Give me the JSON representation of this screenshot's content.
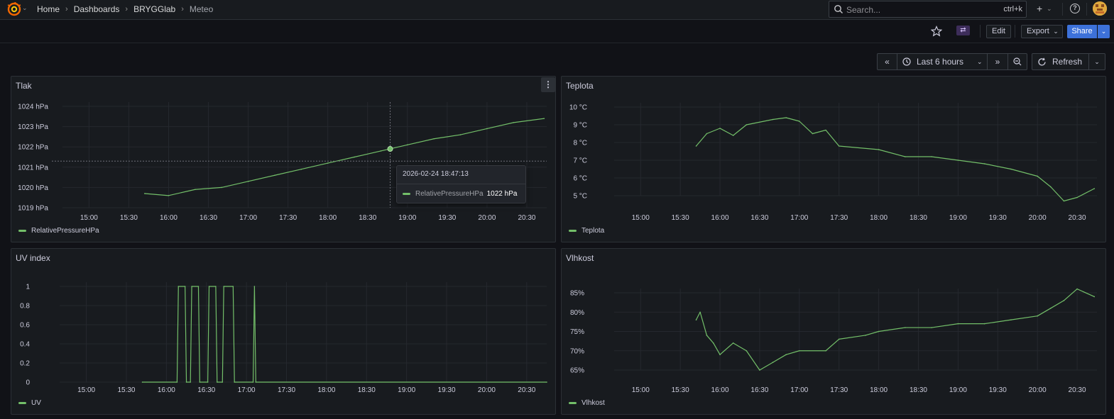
{
  "nav": {
    "breadcrumbs": [
      "Home",
      "Dashboards",
      "BRYGGlab",
      "Meteo"
    ],
    "search_placeholder": "Search...",
    "search_shortcut": "ctrl+k"
  },
  "toolbar": {
    "edit_label": "Edit",
    "export_label": "Export",
    "share_label": "Share"
  },
  "time_picker": {
    "range_label": "Last 6 hours",
    "refresh_label": "Refresh"
  },
  "colors": {
    "series": "#73bf69",
    "share_button": "#3d71d9",
    "background": "#111217",
    "panel": "#181b1f"
  },
  "panels": {
    "tlak": {
      "title": "Tlak",
      "legend": "RelativePressureHPa",
      "tooltip": {
        "time": "2026-02-24 18:47:13",
        "series": "RelativePressureHPa",
        "value": "1022 hPa"
      }
    },
    "teplota": {
      "title": "Teplota",
      "legend": "Teplota"
    },
    "uv": {
      "title": "UV index",
      "legend": "UV"
    },
    "vlhkost": {
      "title": "Vlhkost",
      "legend": "Vlhkost"
    }
  },
  "chart_data": [
    {
      "type": "line",
      "title": "Tlak",
      "x_ticks": [
        "15:00",
        "15:30",
        "16:00",
        "16:30",
        "17:00",
        "17:30",
        "18:00",
        "18:30",
        "19:00",
        "19:30",
        "20:00",
        "20:30"
      ],
      "y_ticks": [
        "1024 hPa",
        "1023 hPa",
        "1022 hPa",
        "1021 hPa",
        "1020 hPa",
        "1019 hPa"
      ],
      "ylim": [
        1019,
        1024
      ],
      "xlim": [
        "14:40",
        "20:45"
      ],
      "series": [
        {
          "name": "RelativePressureHPa",
          "x": [
            "15:42",
            "16:00",
            "16:20",
            "16:40",
            "17:00",
            "17:20",
            "17:40",
            "18:00",
            "18:20",
            "18:40",
            "19:00",
            "19:20",
            "19:40",
            "20:00",
            "20:20",
            "20:43"
          ],
          "y": [
            1019.7,
            1019.6,
            1019.9,
            1020.0,
            1020.3,
            1020.6,
            1020.9,
            1021.2,
            1021.5,
            1021.8,
            1022.1,
            1022.4,
            1022.6,
            1022.9,
            1023.2,
            1023.4
          ]
        }
      ],
      "grid": true,
      "legend_position": "bottom-left"
    },
    {
      "type": "line",
      "title": "Teplota",
      "x_ticks": [
        "15:00",
        "15:30",
        "16:00",
        "16:30",
        "17:00",
        "17:30",
        "18:00",
        "18:30",
        "19:00",
        "19:30",
        "20:00",
        "20:30"
      ],
      "y_ticks": [
        "10 °C",
        "9 °C",
        "8 °C",
        "7 °C",
        "6 °C",
        "5 °C"
      ],
      "ylim": [
        5,
        10
      ],
      "xlim": [
        "14:40",
        "20:45"
      ],
      "series": [
        {
          "name": "Teplota",
          "x": [
            "15:42",
            "15:50",
            "16:00",
            "16:10",
            "16:20",
            "16:40",
            "16:50",
            "17:00",
            "17:10",
            "17:20",
            "17:30",
            "18:00",
            "18:20",
            "18:40",
            "19:00",
            "19:20",
            "19:40",
            "20:00",
            "20:10",
            "20:20",
            "20:30",
            "20:43"
          ],
          "y": [
            7.8,
            8.5,
            8.8,
            8.4,
            9.0,
            9.3,
            9.4,
            9.2,
            8.5,
            8.7,
            7.8,
            7.6,
            7.2,
            7.2,
            7.0,
            6.8,
            6.5,
            6.1,
            5.5,
            4.7,
            4.9,
            5.4
          ]
        }
      ],
      "grid": true,
      "legend_position": "bottom-left"
    },
    {
      "type": "line",
      "title": "UV index",
      "x_ticks": [
        "15:00",
        "15:30",
        "16:00",
        "16:30",
        "17:00",
        "17:30",
        "18:00",
        "18:30",
        "19:00",
        "19:30",
        "20:00",
        "20:30"
      ],
      "y_ticks": [
        "1",
        "0.8",
        "0.6",
        "0.4",
        "0.2",
        "0"
      ],
      "ylim": [
        0,
        1
      ],
      "xlim": [
        "14:40",
        "20:45"
      ],
      "series": [
        {
          "name": "UV",
          "x": [
            "15:42",
            "16:08",
            "16:09",
            "16:14",
            "16:15",
            "16:18",
            "16:19",
            "16:24",
            "16:25",
            "16:31",
            "16:32",
            "16:37",
            "16:38",
            "16:42",
            "16:43",
            "16:50",
            "16:51",
            "17:05",
            "17:06",
            "17:07",
            "20:45"
          ],
          "y": [
            0,
            0,
            1,
            1,
            0,
            0,
            1,
            1,
            0,
            0,
            1,
            1,
            0,
            0,
            1,
            1,
            0,
            0,
            1,
            0,
            0
          ]
        }
      ],
      "grid": true,
      "legend_position": "bottom-left"
    },
    {
      "type": "line",
      "title": "Vlhkost",
      "x_ticks": [
        "15:00",
        "15:30",
        "16:00",
        "16:30",
        "17:00",
        "17:30",
        "18:00",
        "18:30",
        "19:00",
        "19:30",
        "20:00",
        "20:30"
      ],
      "y_ticks": [
        "85%",
        "80%",
        "75%",
        "70%",
        "65%"
      ],
      "ylim": [
        62,
        88
      ],
      "xlim": [
        "14:40",
        "20:45"
      ],
      "series": [
        {
          "name": "Vlhkost",
          "x": [
            "15:42",
            "15:45",
            "15:50",
            "15:55",
            "16:00",
            "16:10",
            "16:20",
            "16:30",
            "16:40",
            "16:50",
            "17:00",
            "17:20",
            "17:30",
            "17:50",
            "18:00",
            "18:20",
            "18:40",
            "19:00",
            "19:20",
            "19:40",
            "20:00",
            "20:10",
            "20:20",
            "20:30",
            "20:43"
          ],
          "y": [
            78,
            80,
            74,
            72,
            69,
            72,
            70,
            65,
            67,
            69,
            70,
            70,
            73,
            74,
            75,
            76,
            76,
            77,
            77,
            78,
            79,
            81,
            83,
            86,
            84
          ]
        }
      ],
      "grid": true,
      "legend_position": "bottom-left"
    }
  ]
}
